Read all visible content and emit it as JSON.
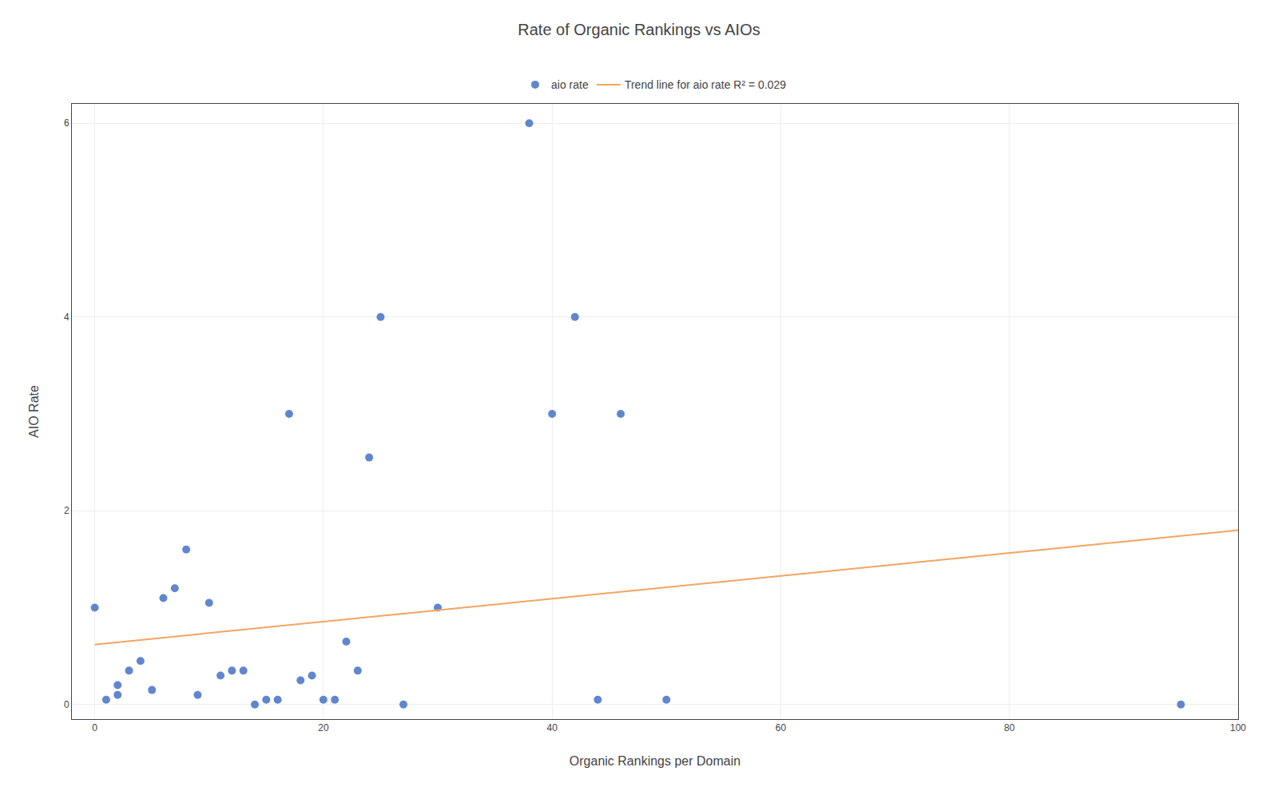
{
  "chart_data": {
    "type": "scatter",
    "title": "Rate of Organic Rankings vs AIOs",
    "x_label": "Organic Rankings per Domain",
    "y_label": "AIO Rate",
    "series": [
      {
        "name": "aio rate",
        "type": "scatter",
        "marker": "circle",
        "color": "#4472C4",
        "x": [
          0,
          1,
          2,
          2,
          3,
          4,
          5,
          6,
          7,
          8,
          9,
          10,
          11,
          12,
          13,
          14,
          15,
          16,
          17,
          18,
          19,
          20,
          21,
          22,
          23,
          24,
          25,
          27,
          30,
          38,
          40,
          42,
          44,
          46,
          50,
          95
        ],
        "values": [
          1.0,
          0.05,
          0.1,
          0.2,
          0.35,
          0.45,
          0.15,
          1.1,
          1.2,
          1.6,
          0.1,
          1.05,
          0.3,
          0.35,
          0.35,
          0.0,
          0.05,
          0.05,
          3.0,
          0.25,
          0.3,
          0.05,
          0.05,
          0.65,
          0.35,
          2.55,
          4.0,
          0.0,
          1.0,
          6.0,
          3.0,
          4.0,
          0.05,
          3.0,
          0.05,
          0.0
        ]
      },
      {
        "name": "Trend line for aio rate R² = 0.029",
        "type": "line",
        "line_style": "solid",
        "color": "#F4A460",
        "x": [
          0,
          100
        ],
        "values": [
          0.62,
          1.8
        ]
      }
    ],
    "xlim": [
      -2,
      100
    ],
    "ylim": [
      -0.15,
      6.2
    ],
    "xticks": [
      0,
      20,
      40,
      60,
      80,
      100
    ],
    "yticks": [
      0,
      2,
      4,
      6
    ],
    "grid": true,
    "legend": "top"
  }
}
